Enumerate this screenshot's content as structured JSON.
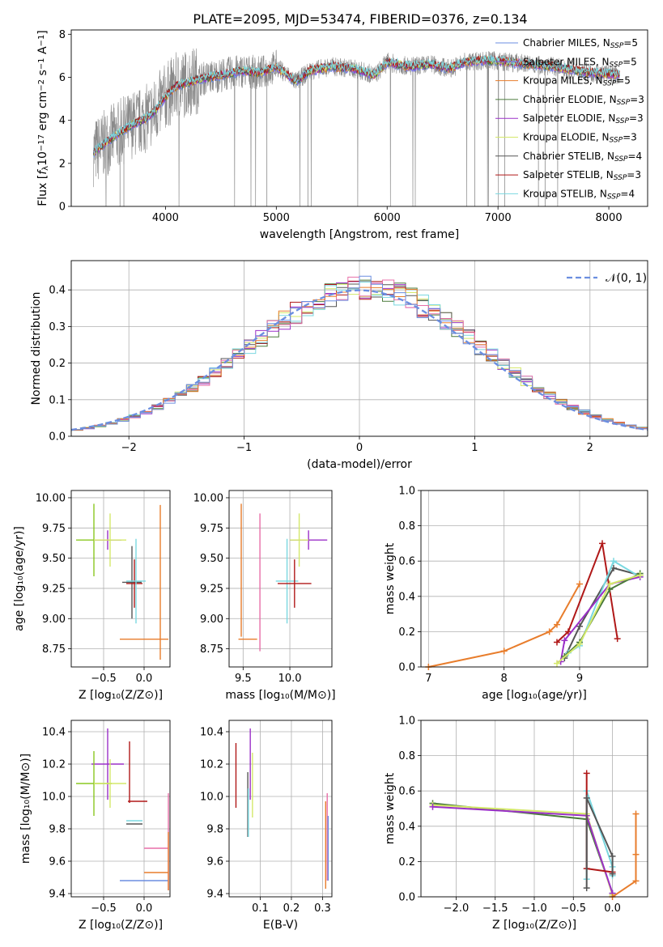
{
  "figure": {
    "title": "PLATE=2095, MJD=53474, FIBERID=0376, z=0.134",
    "colors": [
      "#6b8ee0",
      "#7b68ee",
      "#e87d2c",
      "#4a7a3a",
      "#9b30c8",
      "#d4e86a",
      "#555555",
      "#b01818",
      "#7ad8e0",
      "#e86fa8",
      "#8ac820"
    ]
  },
  "chart_data": [
    {
      "id": "spectrum",
      "type": "line",
      "xlabel": "wavelength [Angstrom, rest frame]",
      "ylabel": "Flux [f_λ 10^-17 erg cm^-2 s^-1 A^-1]",
      "xlim": [
        3150,
        8350
      ],
      "ylim": [
        0,
        8.2
      ],
      "xticks": [
        4000,
        5000,
        6000,
        7000,
        8000
      ],
      "yticks": [
        0,
        2,
        4,
        6,
        8
      ],
      "grid": false,
      "legend": "upper right",
      "data_range": [
        3350,
        8100
      ],
      "continuum": {
        "x": [
          3350,
          3450,
          3550,
          3700,
          3800,
          3900,
          4000,
          4100,
          4300,
          4500,
          4700,
          4860,
          5000,
          5180,
          5300,
          5500,
          5700,
          5890,
          6000,
          6200,
          6400,
          6563,
          6700,
          6900,
          7100,
          7300,
          7500,
          7700,
          7900,
          8100
        ],
        "y": [
          2.5,
          2.9,
          3.3,
          3.8,
          4.0,
          4.4,
          5.1,
          5.6,
          5.9,
          6.1,
          6.3,
          6.2,
          6.5,
          5.8,
          6.3,
          6.5,
          6.4,
          6.1,
          6.7,
          6.5,
          6.6,
          6.4,
          6.7,
          6.8,
          6.7,
          6.6,
          6.5,
          6.3,
          6.2,
          6.1
        ]
      },
      "series": [
        {
          "name": "Chabrier MILES, N_SSP=5",
          "color": "#6b8ee0"
        },
        {
          "name": "Salpeter MILES, N_SSP=5",
          "color": "#7b68ee"
        },
        {
          "name": "Kroupa MILES, N_SSP=5",
          "color": "#e87d2c"
        },
        {
          "name": "Chabrier ELODIE, N_SSP=3",
          "color": "#4a7a3a"
        },
        {
          "name": "Salpeter ELODIE, N_SSP=3",
          "color": "#9b30c8"
        },
        {
          "name": "Kroupa ELODIE, N_SSP=3",
          "color": "#d4e86a"
        },
        {
          "name": "Chabrier STELIB, N_SSP=4",
          "color": "#555555"
        },
        {
          "name": "Salpeter STELIB, N_SSP=3",
          "color": "#b01818"
        },
        {
          "name": "Kroupa STELIB, N_SSP=4",
          "color": "#7ad8e0"
        }
      ]
    },
    {
      "id": "residuals",
      "type": "line",
      "xlabel": "(data-model)/error",
      "ylabel": "Normed distribution",
      "xlim": [
        -2.5,
        2.5
      ],
      "ylim": [
        0,
        0.48
      ],
      "xticks": [
        -2,
        -1,
        0,
        1,
        2
      ],
      "yticks": [
        0.0,
        0.1,
        0.2,
        0.3,
        0.4
      ],
      "grid": true,
      "legend": "upper right",
      "reference": {
        "name": "N(0,1)",
        "mean": 0,
        "sigma": 1,
        "color": "#6b8ee0"
      }
    },
    {
      "id": "age-vs-Z",
      "type": "scatter",
      "xlabel": "Z [log10(Z/Z⊙)]",
      "ylabel": "age [log10(age/yr)]",
      "xlim": [
        -0.9,
        0.32
      ],
      "ylim": [
        8.6,
        10.06
      ],
      "xticks": [
        -0.5,
        0.0
      ],
      "yticks": [
        8.75,
        9.0,
        9.25,
        9.5,
        9.75,
        10.0
      ],
      "grid": true,
      "points": [
        {
          "x": -0.62,
          "y": 9.65,
          "xerr": 0.22,
          "yerr": 0.3,
          "color": "#8ac820"
        },
        {
          "x": -0.45,
          "y": 9.65,
          "xerr": 0.17,
          "yerr": 0.08,
          "color": "#9b30c8"
        },
        {
          "x": -0.42,
          "y": 9.65,
          "xerr": 0.2,
          "yerr": 0.22,
          "color": "#d4e86a"
        },
        {
          "x": -0.15,
          "y": 9.3,
          "xerr": 0.12,
          "yerr": 0.3,
          "color": "#555555"
        },
        {
          "x": -0.12,
          "y": 9.29,
          "xerr": 0.1,
          "yerr": 0.2,
          "color": "#b01818"
        },
        {
          "x": -0.1,
          "y": 9.31,
          "xerr": 0.12,
          "yerr": 0.35,
          "color": "#7ad8e0"
        },
        {
          "x": 0.0,
          "y": 8.83,
          "xerr": 0.3,
          "yerr": 0.0,
          "color": "#e87d2c"
        },
        {
          "x": 0.2,
          "y": 9.3,
          "xerr": 0.0,
          "yerr": 0.64,
          "color": "#e87d2c"
        }
      ]
    },
    {
      "id": "age-vs-mass",
      "type": "scatter",
      "xlabel": "mass [log10(M/M⊙)]",
      "xlim": [
        9.35,
        10.45
      ],
      "ylim": [
        8.6,
        10.06
      ],
      "xticks": [
        9.5,
        10.0
      ],
      "yticks": [
        8.75,
        9.0,
        9.25,
        9.5,
        9.75,
        10.0
      ],
      "grid": true,
      "points": [
        {
          "x": 9.48,
          "y": 9.4,
          "xerr": 0.0,
          "yerr": 0.55,
          "color": "#e87d2c"
        },
        {
          "x": 9.55,
          "y": 8.83,
          "xerr": 0.1,
          "yerr": 0.0,
          "color": "#e87d2c"
        },
        {
          "x": 9.68,
          "y": 9.3,
          "xerr": 0.0,
          "yerr": 0.57,
          "color": "#e86fa8"
        },
        {
          "x": 9.97,
          "y": 9.31,
          "xerr": 0.12,
          "yerr": 0.35,
          "color": "#7ad8e0"
        },
        {
          "x": 10.05,
          "y": 9.29,
          "xerr": 0.18,
          "yerr": 0.2,
          "color": "#b01818"
        },
        {
          "x": 10.2,
          "y": 9.65,
          "xerr": 0.2,
          "yerr": 0.08,
          "color": "#9b30c8"
        },
        {
          "x": 10.1,
          "y": 9.65,
          "xerr": 0.1,
          "yerr": 0.22,
          "color": "#d4e86a"
        }
      ]
    },
    {
      "id": "mass-weight-vs-age",
      "type": "line",
      "xlabel": "age [log10(age/yr)]",
      "ylabel": "mass weight",
      "xlim": [
        6.9,
        9.9
      ],
      "ylim": [
        0,
        1.0
      ],
      "xticks": [
        7,
        8,
        9
      ],
      "yticks": [
        0.0,
        0.2,
        0.4,
        0.6,
        0.8,
        1.0
      ],
      "grid": true,
      "series": [
        {
          "color": "#e87d2c",
          "x": [
            7.0,
            8.0,
            8.6,
            8.7,
            9.0
          ],
          "y": [
            0.0,
            0.09,
            0.2,
            0.24,
            0.47
          ]
        },
        {
          "color": "#b01818",
          "x": [
            8.7,
            8.85,
            9.3,
            9.5
          ],
          "y": [
            0.14,
            0.2,
            0.7,
            0.16
          ]
        },
        {
          "color": "#555555",
          "x": [
            8.8,
            9.0,
            9.45,
            9.8
          ],
          "y": [
            0.05,
            0.23,
            0.56,
            0.52
          ]
        },
        {
          "color": "#7ad8e0",
          "x": [
            8.85,
            9.0,
            9.45,
            9.8
          ],
          "y": [
            0.08,
            0.12,
            0.6,
            0.51
          ]
        },
        {
          "color": "#9b30c8",
          "x": [
            8.75,
            8.8,
            9.4,
            9.8
          ],
          "y": [
            0.03,
            0.15,
            0.47,
            0.51
          ]
        },
        {
          "color": "#4a7a3a",
          "x": [
            8.8,
            9.0,
            9.4,
            9.8
          ],
          "y": [
            0.06,
            0.14,
            0.44,
            0.53
          ]
        },
        {
          "color": "#d4e86a",
          "x": [
            8.7,
            9.0,
            9.4,
            9.8
          ],
          "y": [
            0.02,
            0.13,
            0.47,
            0.52
          ]
        }
      ]
    },
    {
      "id": "mass-vs-Z",
      "type": "scatter",
      "xlabel": "Z [log10(Z/Z⊙)]",
      "ylabel": "mass [log10(M/M⊙)]",
      "xlim": [
        -0.9,
        0.32
      ],
      "ylim": [
        9.38,
        10.47
      ],
      "xticks": [
        -0.5,
        0.0
      ],
      "yticks": [
        9.4,
        9.6,
        9.8,
        10.0,
        10.2,
        10.4
      ],
      "grid": true,
      "points": [
        {
          "x": -0.45,
          "y": 10.2,
          "xerr": 0.2,
          "yerr": 0.22,
          "color": "#9b30c8"
        },
        {
          "x": -0.62,
          "y": 10.08,
          "xerr": 0.22,
          "yerr": 0.2,
          "color": "#8ac820"
        },
        {
          "x": -0.42,
          "y": 10.08,
          "xerr": 0.2,
          "yerr": 0.15,
          "color": "#d4e86a"
        },
        {
          "x": -0.18,
          "y": 10.15,
          "xerr": 0.0,
          "yerr": 0.19,
          "color": "#b01818"
        },
        {
          "x": -0.08,
          "y": 9.97,
          "xerr": 0.12,
          "yerr": 0.0,
          "color": "#b01818"
        },
        {
          "x": -0.12,
          "y": 9.85,
          "xerr": 0.1,
          "yerr": 0.0,
          "color": "#7ad8e0"
        },
        {
          "x": -0.12,
          "y": 9.83,
          "xerr": 0.1,
          "yerr": 0.0,
          "color": "#555555"
        },
        {
          "x": 0.15,
          "y": 9.68,
          "xerr": 0.15,
          "yerr": 0.0,
          "color": "#e86fa8"
        },
        {
          "x": 0.15,
          "y": 9.53,
          "xerr": 0.15,
          "yerr": 0.0,
          "color": "#e87d2c"
        },
        {
          "x": 0.0,
          "y": 9.48,
          "xerr": 0.3,
          "yerr": 0.0,
          "color": "#6b8ee0"
        },
        {
          "x": 0.3,
          "y": 9.72,
          "xerr": 0.0,
          "yerr": 0.3,
          "color": "#e86fa8"
        },
        {
          "x": 0.3,
          "y": 9.6,
          "xerr": 0.0,
          "yerr": 0.18,
          "color": "#e87d2c"
        }
      ]
    },
    {
      "id": "mass-vs-ebv",
      "type": "scatter",
      "xlabel": "E(B-V)",
      "xlim": [
        0.0,
        0.33
      ],
      "ylim": [
        9.38,
        10.47
      ],
      "xticks": [
        0.1,
        0.2,
        0.3
      ],
      "yticks": [
        9.4,
        9.6,
        9.8,
        10.0,
        10.2,
        10.4
      ],
      "grid": true,
      "points": [
        {
          "x": 0.022,
          "y": 10.13,
          "xerr": 0.0,
          "yerr": 0.2,
          "color": "#b01818"
        },
        {
          "x": 0.06,
          "y": 9.95,
          "xerr": 0.0,
          "yerr": 0.2,
          "color": "#555555"
        },
        {
          "x": 0.062,
          "y": 9.9,
          "xerr": 0.0,
          "yerr": 0.15,
          "color": "#7ad8e0"
        },
        {
          "x": 0.068,
          "y": 10.2,
          "xerr": 0.0,
          "yerr": 0.22,
          "color": "#9b30c8"
        },
        {
          "x": 0.075,
          "y": 10.07,
          "xerr": 0.0,
          "yerr": 0.2,
          "color": "#d4e86a"
        },
        {
          "x": 0.31,
          "y": 9.7,
          "xerr": 0.0,
          "yerr": 0.27,
          "color": "#e87d2c"
        },
        {
          "x": 0.315,
          "y": 9.75,
          "xerr": 0.0,
          "yerr": 0.27,
          "color": "#e86fa8"
        },
        {
          "x": 0.318,
          "y": 9.68,
          "xerr": 0.0,
          "yerr": 0.2,
          "color": "#6b8ee0"
        }
      ]
    },
    {
      "id": "mass-weight-vs-Z",
      "type": "line",
      "xlabel": "Z [log10(Z/Z⊙)]",
      "ylabel": "mass weight",
      "xlim": [
        -2.45,
        0.45
      ],
      "ylim": [
        0,
        1.0
      ],
      "xticks": [
        -2.0,
        -1.5,
        -1.0,
        -0.5,
        0.0
      ],
      "yticks": [
        0.0,
        0.2,
        0.4,
        0.6,
        0.8,
        1.0
      ],
      "grid": true,
      "series": [
        {
          "color": "#4a7a3a",
          "x": [
            -2.3,
            -0.33,
            0.0
          ],
          "y": [
            0.53,
            0.44,
            0.02
          ]
        },
        {
          "color": "#d4e86a",
          "x": [
            -2.3,
            -0.33,
            0.0
          ],
          "y": [
            0.52,
            0.47,
            0.01
          ]
        },
        {
          "color": "#9b30c8",
          "x": [
            -2.3,
            -0.33,
            0.0
          ],
          "y": [
            0.51,
            0.46,
            0.02
          ]
        },
        {
          "color": "#7ad8e0",
          "x": [
            -0.33,
            -0.33,
            0.0,
            0.0
          ],
          "y": [
            0.1,
            0.6,
            0.17,
            0.12
          ]
        },
        {
          "color": "#b01818",
          "x": [
            -0.33,
            -0.33,
            0.0
          ],
          "y": [
            0.7,
            0.16,
            0.14
          ]
        },
        {
          "color": "#555555",
          "x": [
            -0.33,
            -0.33,
            0.0,
            0.0
          ],
          "y": [
            0.05,
            0.56,
            0.23,
            0.13
          ]
        },
        {
          "color": "#e87d2c",
          "x": [
            0.0,
            0.3,
            0.3,
            0.3
          ],
          "y": [
            0.0,
            0.09,
            0.24,
            0.47
          ]
        }
      ]
    }
  ]
}
